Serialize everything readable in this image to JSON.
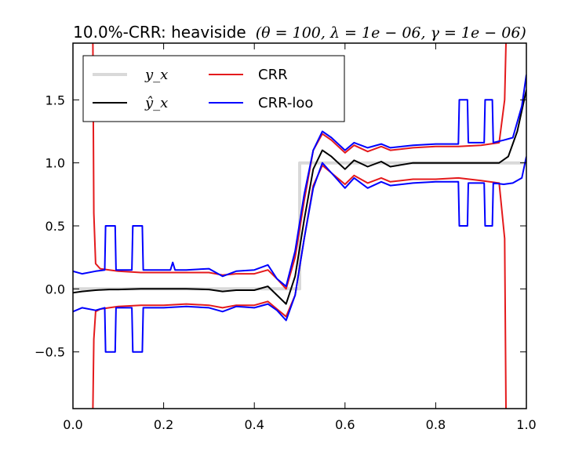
{
  "chart_data": {
    "type": "line",
    "title": "10.0%-CRR: heaviside",
    "title_params": "(θ = 100, λ = 1e − 06, γ = 1e − 06)",
    "xlabel": "",
    "ylabel": "",
    "xlim": [
      0.0,
      1.0
    ],
    "ylim": [
      -0.95,
      1.95
    ],
    "grid": false,
    "legend_position": "top-left",
    "xticks": [
      0.0,
      0.2,
      0.4,
      0.6,
      0.8,
      1.0
    ],
    "xtick_labels": [
      "0.0",
      "0.2",
      "0.4",
      "0.6",
      "0.8",
      "1.0"
    ],
    "yticks": [
      -0.5,
      0.0,
      0.5,
      1.0,
      1.5
    ],
    "ytick_labels": [
      "−0.5",
      "0.0",
      "0.5",
      "1.0",
      "1.5"
    ],
    "legend": [
      {
        "label": "y_x",
        "color": "#d9d9d9"
      },
      {
        "label": "ŷ_x",
        "color": "#000000"
      },
      {
        "label": "CRR",
        "color": "#e41a1c"
      },
      {
        "label": "CRR-loo",
        "color": "#0000ff"
      }
    ],
    "series": [
      {
        "name": "y_x",
        "color": "#d9d9d9",
        "x": [
          0.0,
          0.5,
          0.5,
          1.0
        ],
        "y": [
          0.0,
          0.0,
          1.0,
          1.0
        ]
      },
      {
        "name": "ŷ_x",
        "color": "#000000",
        "x": [
          0.0,
          0.02,
          0.05,
          0.08,
          0.1,
          0.15,
          0.2,
          0.25,
          0.3,
          0.33,
          0.36,
          0.4,
          0.43,
          0.45,
          0.47,
          0.49,
          0.51,
          0.53,
          0.55,
          0.57,
          0.6,
          0.62,
          0.65,
          0.68,
          0.7,
          0.75,
          0.8,
          0.85,
          0.9,
          0.94,
          0.96,
          0.98,
          1.0
        ],
        "y": [
          -0.03,
          -0.02,
          -0.01,
          -0.005,
          -0.005,
          0.0,
          0.0,
          0.0,
          -0.005,
          -0.02,
          -0.01,
          -0.01,
          0.02,
          -0.05,
          -0.12,
          0.1,
          0.55,
          0.95,
          1.1,
          1.05,
          0.95,
          1.02,
          0.97,
          1.01,
          0.97,
          1.0,
          1.0,
          1.0,
          1.0,
          1.0,
          1.05,
          1.25,
          1.58
        ]
      },
      {
        "name": "CRR",
        "color": "#e41a1c",
        "x": [
          0.044,
          0.046,
          0.05,
          0.06,
          0.08,
          0.1,
          0.15,
          0.2,
          0.25,
          0.3,
          0.33,
          0.36,
          0.4,
          0.43,
          0.45,
          0.47,
          0.49,
          0.51,
          0.53,
          0.55,
          0.57,
          0.6,
          0.62,
          0.65,
          0.68,
          0.7,
          0.75,
          0.8,
          0.85,
          0.9,
          0.94,
          0.952,
          0.955
        ],
        "y": [
          1.95,
          0.6,
          0.2,
          0.16,
          0.15,
          0.14,
          0.13,
          0.13,
          0.13,
          0.13,
          0.11,
          0.12,
          0.12,
          0.15,
          0.08,
          -0.0,
          0.25,
          0.7,
          1.1,
          1.23,
          1.18,
          1.08,
          1.14,
          1.09,
          1.13,
          1.1,
          1.12,
          1.13,
          1.13,
          1.14,
          1.16,
          1.5,
          1.95
        ]
      },
      {
        "name": "CRR lower",
        "color": "#e41a1c",
        "x": [
          0.044,
          0.046,
          0.05,
          0.06,
          0.08,
          0.1,
          0.15,
          0.2,
          0.25,
          0.3,
          0.33,
          0.36,
          0.4,
          0.43,
          0.45,
          0.47,
          0.49,
          0.51,
          0.53,
          0.55,
          0.57,
          0.6,
          0.62,
          0.65,
          0.68,
          0.7,
          0.75,
          0.8,
          0.85,
          0.9,
          0.94,
          0.952,
          0.955
        ],
        "y": [
          -0.95,
          -0.4,
          -0.18,
          -0.16,
          -0.15,
          -0.14,
          -0.13,
          -0.13,
          -0.12,
          -0.13,
          -0.15,
          -0.13,
          -0.13,
          -0.1,
          -0.16,
          -0.22,
          -0.05,
          0.4,
          0.82,
          0.98,
          0.92,
          0.83,
          0.9,
          0.84,
          0.88,
          0.85,
          0.87,
          0.87,
          0.88,
          0.86,
          0.84,
          0.4,
          -0.95
        ]
      },
      {
        "name": "CRR-loo",
        "color": "#0000ff",
        "x": [
          0.0,
          0.02,
          0.05,
          0.07,
          0.072,
          0.093,
          0.095,
          0.13,
          0.132,
          0.153,
          0.155,
          0.2,
          0.215,
          0.22,
          0.225,
          0.25,
          0.3,
          0.33,
          0.36,
          0.4,
          0.43,
          0.45,
          0.47,
          0.49,
          0.51,
          0.53,
          0.55,
          0.57,
          0.6,
          0.62,
          0.65,
          0.68,
          0.7,
          0.75,
          0.8,
          0.84,
          0.85,
          0.852,
          0.87,
          0.872,
          0.907,
          0.909,
          0.925,
          0.927,
          0.95,
          0.97,
          0.99,
          1.0
        ],
        "y": [
          0.14,
          0.12,
          0.14,
          0.15,
          0.5,
          0.5,
          0.15,
          0.15,
          0.5,
          0.5,
          0.15,
          0.15,
          0.15,
          0.21,
          0.15,
          0.15,
          0.16,
          0.1,
          0.14,
          0.15,
          0.19,
          0.08,
          0.02,
          0.3,
          0.75,
          1.1,
          1.25,
          1.2,
          1.1,
          1.16,
          1.12,
          1.15,
          1.12,
          1.14,
          1.15,
          1.15,
          1.15,
          1.5,
          1.5,
          1.16,
          1.16,
          1.5,
          1.5,
          1.16,
          1.18,
          1.2,
          1.45,
          1.7
        ]
      },
      {
        "name": "CRR-loo lower",
        "color": "#0000ff",
        "x": [
          0.0,
          0.02,
          0.05,
          0.07,
          0.072,
          0.093,
          0.095,
          0.13,
          0.132,
          0.153,
          0.155,
          0.2,
          0.25,
          0.3,
          0.33,
          0.36,
          0.4,
          0.43,
          0.45,
          0.47,
          0.49,
          0.51,
          0.53,
          0.55,
          0.57,
          0.6,
          0.62,
          0.65,
          0.68,
          0.7,
          0.75,
          0.8,
          0.84,
          0.85,
          0.852,
          0.87,
          0.872,
          0.907,
          0.909,
          0.925,
          0.927,
          0.95,
          0.97,
          0.99,
          1.0
        ],
        "y": [
          -0.18,
          -0.15,
          -0.17,
          -0.15,
          -0.5,
          -0.5,
          -0.15,
          -0.15,
          -0.5,
          -0.5,
          -0.15,
          -0.15,
          -0.14,
          -0.15,
          -0.18,
          -0.14,
          -0.15,
          -0.12,
          -0.17,
          -0.25,
          -0.05,
          0.4,
          0.8,
          1.0,
          0.92,
          0.8,
          0.88,
          0.8,
          0.85,
          0.82,
          0.84,
          0.85,
          0.85,
          0.85,
          0.5,
          0.5,
          0.84,
          0.84,
          0.5,
          0.5,
          0.84,
          0.83,
          0.84,
          0.88,
          1.05
        ]
      }
    ]
  }
}
